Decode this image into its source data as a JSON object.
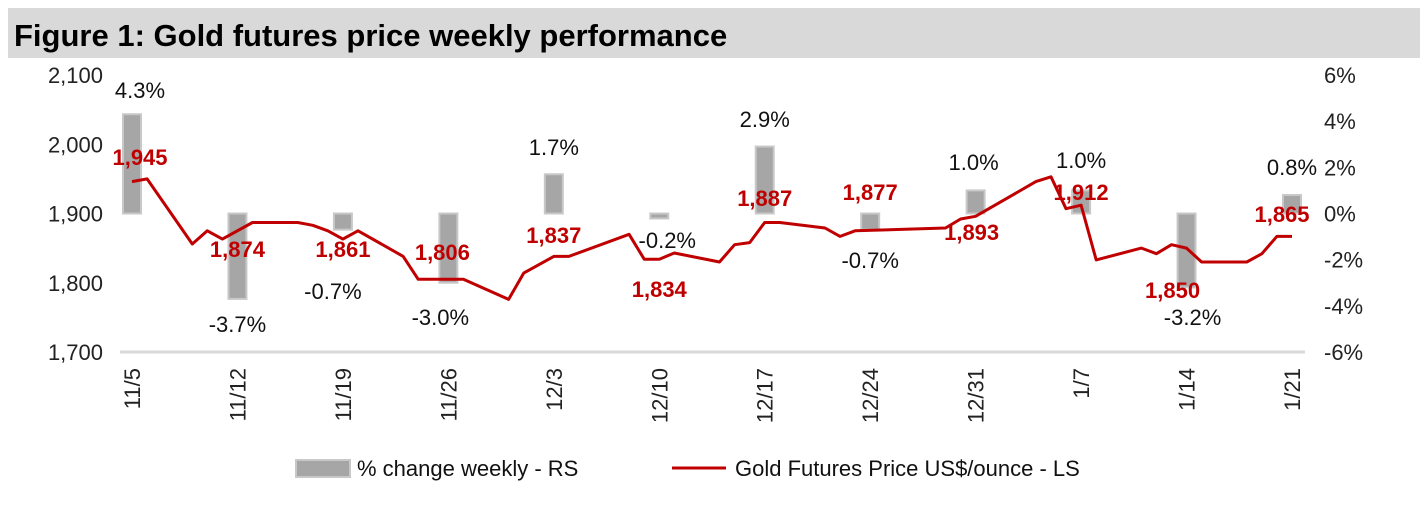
{
  "chart_data": {
    "type": "bar+line",
    "title": "Figure 1: Gold futures price weekly performance",
    "categories": [
      "11/5",
      "11/12",
      "11/19",
      "11/26",
      "12/3",
      "12/10",
      "12/17",
      "12/24",
      "12/31",
      "1/7",
      "1/14",
      "1/21"
    ],
    "bar_series": {
      "name": "% change weekly - RS",
      "axis": "right",
      "values": [
        4.3,
        -3.7,
        -0.7,
        -3.0,
        1.7,
        -0.2,
        2.9,
        -0.7,
        1.0,
        1.0,
        -3.2,
        0.8
      ],
      "labels": [
        "4.3%",
        "-3.7%",
        "-0.7%",
        "-3.0%",
        "1.7%",
        "-0.2%",
        "2.9%",
        "-0.7%",
        "1.0%",
        "1.0%",
        "-3.2%",
        "0.8%"
      ],
      "color": "#a6a6a6"
    },
    "line_series": {
      "name": "Gold Futures Price US$/ounce - LS",
      "axis": "left",
      "color": "#c00000",
      "x_days_from_11_5": [
        0,
        1,
        4,
        5,
        6,
        8,
        11,
        12,
        13,
        14,
        15,
        18,
        19,
        22,
        25,
        26,
        28,
        29,
        33,
        34,
        35,
        36,
        39,
        40,
        41,
        42,
        43,
        46,
        47,
        48,
        54,
        55,
        56,
        60,
        61,
        62,
        63,
        64,
        67,
        68,
        69,
        70,
        71,
        74,
        75,
        76,
        77
      ],
      "values": [
        1946,
        1950,
        1856,
        1875,
        1863,
        1887,
        1887,
        1883,
        1875,
        1863,
        1875,
        1838,
        1805,
        1805,
        1776,
        1814,
        1838,
        1838,
        1870,
        1834,
        1834,
        1843,
        1830,
        1855,
        1858,
        1887,
        1887,
        1879,
        1867,
        1875,
        1879,
        1892,
        1896,
        1946,
        1953,
        1907,
        1912,
        1833,
        1850,
        1842,
        1855,
        1850,
        1830,
        1830,
        1842,
        1867,
        1867
      ],
      "weekly_labels": [
        "1,945",
        "1,874",
        "1,861",
        "1,806",
        "1,837",
        "1,834",
        "1,887",
        "1,877",
        "1,893",
        "1,912",
        "1,850",
        "1,865"
      ]
    },
    "left_axis": {
      "ylim": [
        1700,
        2100
      ],
      "ticks": [
        "1,700",
        "1,800",
        "1,900",
        "2,000",
        "2,100"
      ]
    },
    "right_axis": {
      "ylim": [
        -6,
        6
      ],
      "ticks": [
        "-6%",
        "-4%",
        "-2%",
        "0%",
        "2%",
        "4%",
        "6%"
      ]
    },
    "grid": false,
    "legend_placement": "bottom"
  }
}
